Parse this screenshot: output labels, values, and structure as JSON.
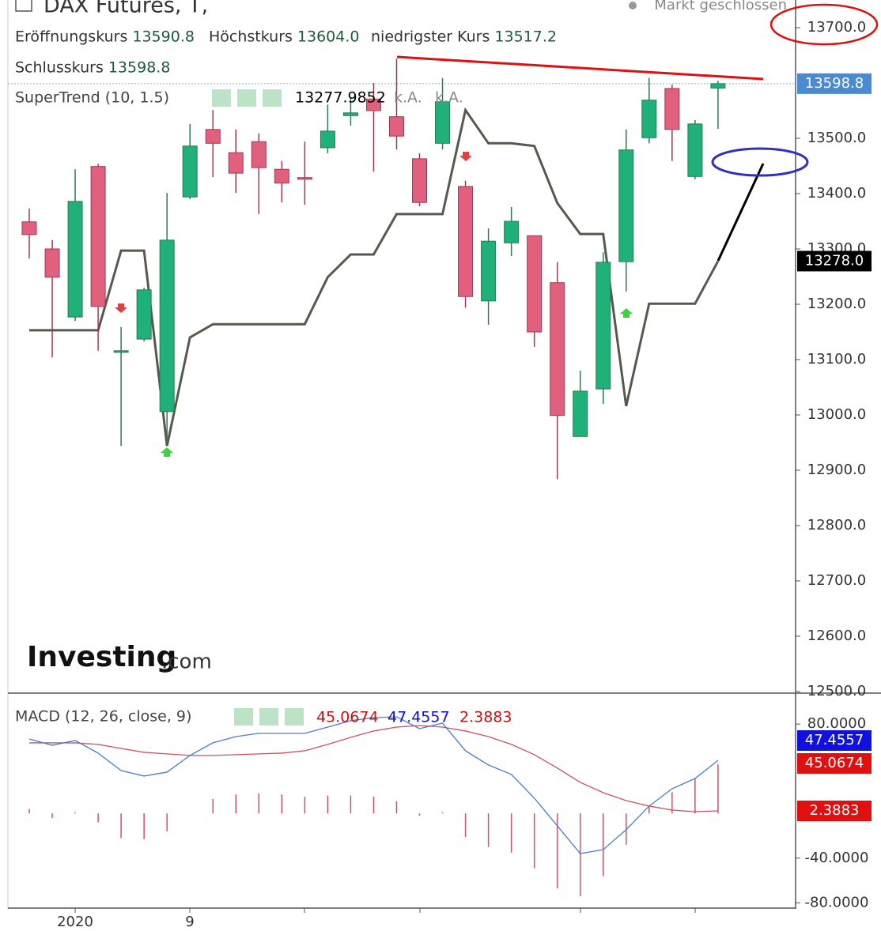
{
  "chart_data": [
    {
      "type": "candlestick",
      "title": "DAX Futures, T,",
      "status": "Markt geschlossen",
      "header": [
        {
          "label": "Eröffnungskurs",
          "value": {
            "value": 13590.8,
            "label": "13590.8"
          }
        },
        {
          "label": "Höchstkurs",
          "value": {
            "value": 13604,
            "label": "13604.0"
          }
        },
        {
          "label": "niedrigster Kurs",
          "value": {
            "value": 13517.2,
            "label": "13517.2"
          }
        },
        {
          "label": "Schlusskurs",
          "value": {
            "value": 13598.8,
            "label": "13598.8"
          }
        }
      ],
      "open": [
        13349,
        13300,
        13177,
        13449,
        13116,
        13137,
        13006,
        13394,
        13516,
        13474,
        13494,
        13444,
        13429,
        13483,
        13541,
        13571,
        13539,
        13463,
        13491,
        13413,
        13206,
        13311,
        13324,
        13239,
        12961,
        13047,
        13277,
        13501,
        13590,
        13431,
        13590.8
      ],
      "high": [
        13373,
        13316,
        13444,
        13454,
        13159,
        13230,
        13401,
        13526,
        13551,
        13516,
        13509,
        13459,
        13494,
        13561,
        13573,
        13600,
        13644,
        13473,
        13609,
        13423,
        13337,
        13376,
        13324,
        13276,
        13080,
        13294,
        13516,
        13609,
        13597,
        13533,
        13604
      ],
      "low": [
        13283,
        13104,
        13170,
        13116,
        12944,
        13133,
        12951,
        13390,
        13430,
        13401,
        13363,
        13384,
        13380,
        13473,
        13523,
        13440,
        13480,
        13377,
        13480,
        13194,
        13163,
        13287,
        13123,
        12884,
        12961,
        13020,
        13223,
        13491,
        13459,
        13426,
        13517.2
      ],
      "close": [
        13326,
        13249,
        13386,
        13196,
        13116,
        13226,
        13316,
        13486,
        13491,
        13437,
        13447,
        13419,
        13426,
        13513,
        13546,
        13550,
        13504,
        13384,
        13566,
        13214,
        13314,
        13350,
        13150,
        12999,
        13043,
        13276,
        13479,
        13569,
        13516,
        13526,
        13598.8
      ],
      "up_color": "#20b07a",
      "down_color": "#e0607e",
      "supertrend": {
        "name": "SuperTrend (10, 1.5)",
        "color": "#555a4e",
        "legend_values": [
          13277.9852,
          "k.A.",
          "k.A."
        ],
        "values": [
          13153,
          13153,
          13153,
          13153,
          13297,
          13297,
          12944,
          13140,
          13164,
          13164,
          13164,
          13164,
          13164,
          13249,
          13290,
          13290,
          13363,
          13363,
          13363,
          13551,
          13491,
          13491,
          13486,
          13383,
          13327,
          13327,
          13016,
          13201,
          13201,
          13201,
          13277.9852
        ]
      },
      "ylim": [
        12500,
        13750
      ],
      "yticks": [
        {
          "value": 12500,
          "label": "12500.0"
        },
        {
          "value": 12600,
          "label": "12600.0"
        },
        {
          "value": 12700,
          "label": "12700.0"
        },
        {
          "value": 12800,
          "label": "12800.0"
        },
        {
          "value": 12900,
          "label": "12900.0"
        },
        {
          "value": 13000,
          "label": "13000.0"
        },
        {
          "value": 13100,
          "label": "13100.0"
        },
        {
          "value": 13200,
          "label": "13200.0"
        },
        {
          "value": 13300,
          "label": "13300.0"
        },
        {
          "value": 13400,
          "label": "13400.0"
        },
        {
          "value": 13500,
          "label": "13500.0"
        },
        {
          "value": 13700,
          "label": "13700.0"
        }
      ],
      "price_label": {
        "value": 13598.8,
        "label": "13598.8"
      },
      "supertrend_label": {
        "value": 13278,
        "label": "13278.0"
      },
      "watermark": [
        "Investing",
        ".com"
      ],
      "xlabels": [
        "2020",
        "9"
      ]
    },
    {
      "type": "line",
      "title": "MACD (12, 26, close, 9)",
      "legend_values": [
        45.0674,
        47.4557,
        2.3883
      ],
      "series": [
        {
          "color": "#d05060",
          "values": [
            63.2,
            63.2,
            63.2,
            61.8,
            58.2,
            54.7,
            53.3,
            51.9,
            51.9,
            52.6,
            53.3,
            54.0,
            56.1,
            61.8,
            68.1,
            73.8,
            77.3,
            78.7,
            77.3,
            73.8,
            68.8,
            61.8,
            52.6,
            40.6,
            27.8,
            18.6,
            11.5,
            6.6,
            3.0,
            1.6,
            2.3
          ]
        },
        {
          "color": "#4a7bd0",
          "values": [
            66.7,
            61.0,
            65.3,
            54.0,
            38.4,
            33.5,
            37.0,
            51.9,
            63.2,
            68.8,
            71.7,
            71.7,
            71.7,
            77.3,
            83.0,
            85.8,
            86.5,
            75.9,
            80.8,
            56.1,
            43.4,
            34.9,
            13.7,
            -11.1,
            -35.9,
            -32.4,
            -14.5,
            6.6,
            22.1,
            31.3,
            47.4557
          ]
        }
      ],
      "histogram": {
        "color": "#d0506a",
        "values": [
          4,
          -4,
          1,
          -8,
          -22,
          -23,
          -16,
          0,
          13,
          17,
          18,
          17,
          15,
          16,
          16,
          15,
          11,
          -2,
          1,
          -21,
          -30,
          -35,
          -49,
          -67,
          -74,
          -56,
          -28,
          6,
          19,
          31,
          44
        ]
      },
      "ylim": [
        -84,
        107
      ],
      "yticks": [
        {
          "value": 80,
          "label": "80.0000"
        },
        {
          "value": -40,
          "label": "-40.0000"
        },
        {
          "value": -80,
          "label": "-80.0000"
        }
      ]
    }
  ]
}
